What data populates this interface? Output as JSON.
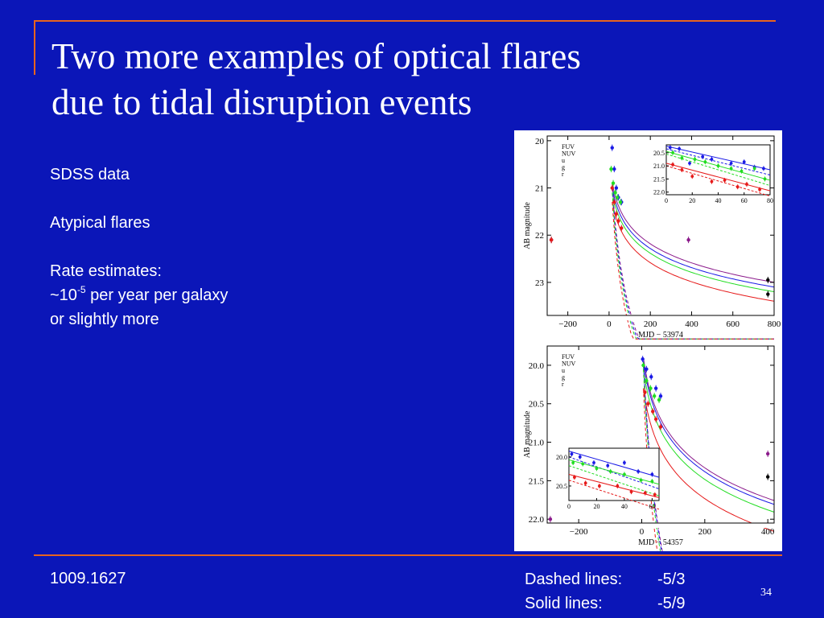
{
  "slide": {
    "title_line1": "Two more examples of optical flares",
    "title_line2": "due to tidal disruption events",
    "bullet1": "SDSS data",
    "bullet2": "Atypical flares",
    "bullet3": "Rate estimates:",
    "rate_prefix": "~10",
    "rate_exponent": "-5",
    "rate_suffix": " per year per galaxy",
    "rate_line2": "or slightly more",
    "reference": "1009.1627",
    "dashed_label": "Dashed lines:",
    "dashed_value": "-5/3",
    "solid_label": "Solid lines:",
    "solid_value": "-5/9",
    "page_number": "34"
  },
  "colors": {
    "background": "#0b16b8",
    "rule": "#e8641e",
    "FUV": "#000000",
    "NUV": "#8b1a8b",
    "u": "#1a1ae6",
    "g": "#22dd22",
    "r": "#e61a1a"
  },
  "chart_data": [
    {
      "type": "scatter",
      "xlabel": "MJD − 53974",
      "ylabel": "AB magnitude",
      "xlim": [
        -300,
        800
      ],
      "ylim": [
        23.7,
        19.9
      ],
      "y_inverted": true,
      "x_ticks": [
        "−200",
        "0",
        "200",
        "400",
        "600",
        "800"
      ],
      "y_ticks": [
        "20",
        "21",
        "22",
        "23"
      ],
      "legend": [
        "FUV",
        "NUV",
        "u",
        "g",
        "r"
      ],
      "legend_position": "top-left",
      "series": [
        {
          "name": "FUV",
          "points": [
            [
              -280,
              22.1
            ],
            [
              770,
              22.95
            ],
            [
              770,
              23.25
            ]
          ]
        },
        {
          "name": "NUV",
          "points": [
            [
              -280,
              22.1
            ],
            [
              385,
              22.1
            ]
          ]
        },
        {
          "name": "u",
          "points": [
            [
              15,
              20.15
            ],
            [
              25,
              20.6
            ],
            [
              35,
              21.0
            ],
            [
              45,
              21.2
            ],
            [
              60,
              21.3
            ]
          ]
        },
        {
          "name": "g",
          "points": [
            [
              10,
              20.6
            ],
            [
              20,
              20.9
            ],
            [
              30,
              21.1
            ],
            [
              40,
              21.2
            ],
            [
              55,
              21.3
            ]
          ]
        },
        {
          "name": "r",
          "points": [
            [
              -280,
              22.1
            ],
            [
              15,
              21.0
            ],
            [
              25,
              21.3
            ],
            [
              35,
              21.55
            ],
            [
              45,
              21.7
            ],
            [
              60,
              21.85
            ]
          ]
        }
      ],
      "inset": {
        "x_ticks": [
          "0",
          "20",
          "40",
          "60",
          "80"
        ],
        "y_ticks": [
          "20.5",
          "21.0",
          "21.5",
          "22.0"
        ],
        "xlim": [
          0,
          80
        ],
        "ylim": [
          22.1,
          20.2
        ],
        "series": [
          {
            "name": "u",
            "points": [
              [
                3,
                20.3
              ],
              [
                10,
                20.35
              ],
              [
                18,
                20.9
              ],
              [
                28,
                20.65
              ],
              [
                35,
                20.75
              ],
              [
                50,
                20.9
              ],
              [
                60,
                20.85
              ],
              [
                68,
                21.05
              ],
              [
                75,
                21.1
              ]
            ]
          },
          {
            "name": "g",
            "points": [
              [
                5,
                20.5
              ],
              [
                12,
                20.7
              ],
              [
                22,
                20.75
              ],
              [
                30,
                20.85
              ],
              [
                40,
                21.0
              ],
              [
                50,
                21.1
              ],
              [
                58,
                21.2
              ],
              [
                68,
                21.1
              ],
              [
                76,
                21.5
              ]
            ]
          },
          {
            "name": "r",
            "points": [
              [
                5,
                20.95
              ],
              [
                12,
                21.15
              ],
              [
                20,
                21.4
              ],
              [
                35,
                21.6
              ],
              [
                45,
                21.55
              ],
              [
                55,
                21.8
              ],
              [
                62,
                21.7
              ],
              [
                72,
                21.9
              ]
            ]
          }
        ]
      },
      "model_curves": {
        "dashed": "-5/3",
        "solid": "-5/9"
      }
    },
    {
      "type": "scatter",
      "xlabel": "MJD − 54357",
      "ylabel": "AB magnitude",
      "xlim": [
        -300,
        420
      ],
      "ylim": [
        22.05,
        19.75
      ],
      "y_inverted": true,
      "x_ticks": [
        "−200",
        "0",
        "200",
        "400"
      ],
      "y_ticks": [
        "20.0",
        "20.5",
        "21.0",
        "21.5",
        "22.0"
      ],
      "legend": [
        "FUV",
        "NUV",
        "u",
        "g",
        "r"
      ],
      "legend_position": "top-left",
      "series": [
        {
          "name": "FUV",
          "points": [
            [
              400,
              21.45
            ]
          ]
        },
        {
          "name": "NUV",
          "points": [
            [
              -290,
              22.0
            ],
            [
              400,
              21.15
            ]
          ]
        },
        {
          "name": "u",
          "points": [
            [
              3,
              19.92
            ],
            [
              15,
              20.05
            ],
            [
              30,
              20.15
            ],
            [
              45,
              20.3
            ],
            [
              60,
              20.4
            ]
          ]
        },
        {
          "name": "g",
          "points": [
            [
              5,
              20.0
            ],
            [
              15,
              20.2
            ],
            [
              28,
              20.3
            ],
            [
              40,
              20.4
            ],
            [
              55,
              20.45
            ]
          ]
        },
        {
          "name": "r",
          "points": [
            [
              10,
              20.35
            ],
            [
              20,
              20.5
            ],
            [
              35,
              20.6
            ],
            [
              45,
              20.7
            ],
            [
              60,
              20.8
            ]
          ]
        }
      ],
      "inset": {
        "x_ticks": [
          "0",
          "20",
          "40",
          "60"
        ],
        "y_ticks": [
          "20.0",
          "20.5"
        ],
        "xlim": [
          0,
          65
        ],
        "ylim": [
          20.75,
          19.85
        ],
        "series": [
          {
            "name": "u",
            "points": [
              [
                2,
                19.95
              ],
              [
                8,
                20.0
              ],
              [
                18,
                20.1
              ],
              [
                28,
                20.15
              ],
              [
                40,
                20.1
              ],
              [
                50,
                20.25
              ],
              [
                60,
                20.3
              ]
            ]
          },
          {
            "name": "g",
            "points": [
              [
                3,
                20.1
              ],
              [
                10,
                20.12
              ],
              [
                20,
                20.2
              ],
              [
                30,
                20.25
              ],
              [
                40,
                20.3
              ],
              [
                52,
                20.4
              ],
              [
                60,
                20.42
              ]
            ]
          },
          {
            "name": "r",
            "points": [
              [
                4,
                20.35
              ],
              [
                12,
                20.45
              ],
              [
                22,
                20.5
              ],
              [
                35,
                20.5
              ],
              [
                45,
                20.6
              ],
              [
                55,
                20.62
              ],
              [
                62,
                20.65
              ]
            ]
          }
        ]
      },
      "model_curves": {
        "dashed": "-5/3",
        "solid": "-5/9"
      }
    }
  ]
}
